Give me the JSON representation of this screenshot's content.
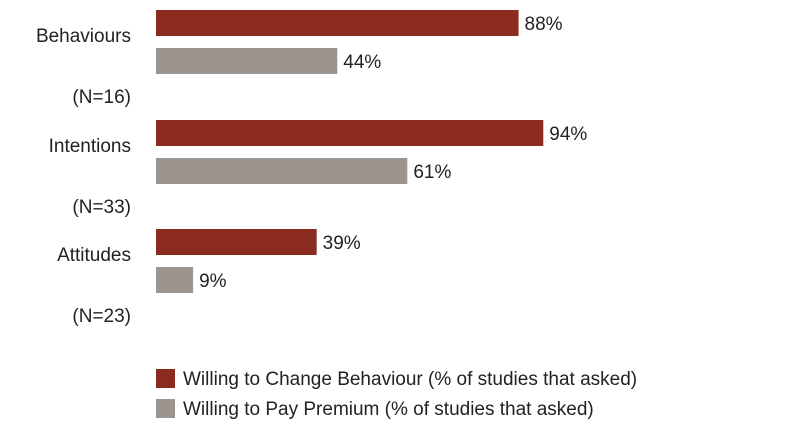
{
  "chart_data": {
    "type": "bar",
    "orientation": "horizontal",
    "categories": [
      {
        "name": "Behaviours",
        "n": "(N=16)"
      },
      {
        "name": "Intentions",
        "n": "(N=33)"
      },
      {
        "name": "Attitudes",
        "n": "(N=23)"
      }
    ],
    "series": [
      {
        "name": "Willing to Change Behaviour (% of studies that asked)",
        "color": "#8b2a1e",
        "values": [
          88,
          94,
          39
        ],
        "labels": [
          "88%",
          "94%",
          "39%"
        ]
      },
      {
        "name": "Willing to Pay Premium (% of studies that asked)",
        "color": "#9c948e",
        "values": [
          44,
          61,
          9
        ],
        "labels": [
          "44%",
          "61%",
          "9%"
        ]
      }
    ],
    "xlim": [
      0,
      100
    ],
    "grid": false,
    "legend": "bottom"
  }
}
